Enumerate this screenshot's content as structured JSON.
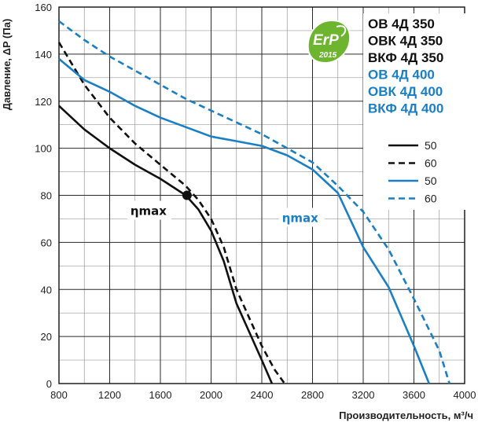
{
  "chart_data": {
    "type": "line",
    "xlabel": "Производительность, м³/ч",
    "ylabel": "Давление, ΔP (Па)",
    "xlim": [
      800,
      4000
    ],
    "ylim": [
      0,
      160
    ],
    "x_ticks": [
      "800",
      "1200",
      "1600",
      "2000",
      "2400",
      "2800",
      "3200",
      "3600",
      "4000"
    ],
    "y_ticks": [
      "0",
      "20",
      "40",
      "60",
      "80",
      "100",
      "120",
      "140",
      "160"
    ],
    "grid": true,
    "legend_position": "top-right",
    "legend_models": [
      {
        "label": "ОВ 4Д 350",
        "color": "#111111"
      },
      {
        "label": "ОВК 4Д 350",
        "color": "#111111"
      },
      {
        "label": "ВКФ 4Д 350",
        "color": "#111111"
      },
      {
        "label": "ОВ 4Д 400",
        "color": "#1a7fc4"
      },
      {
        "label": "ОВК 4Д 400",
        "color": "#1a7fc4"
      },
      {
        "label": "ВКФ 4Д 400",
        "color": "#1a7fc4"
      }
    ],
    "series": [
      {
        "name": "50",
        "color": "#111111",
        "dash": false,
        "points": [
          [
            800,
            118
          ],
          [
            1000,
            108
          ],
          [
            1200,
            100
          ],
          [
            1400,
            93
          ],
          [
            1600,
            87
          ],
          [
            1800,
            80
          ],
          [
            1900,
            74
          ],
          [
            2000,
            65
          ],
          [
            2100,
            52
          ],
          [
            2200,
            34
          ],
          [
            2300,
            22
          ],
          [
            2400,
            10
          ],
          [
            2480,
            0
          ]
        ]
      },
      {
        "name": "60",
        "color": "#111111",
        "dash": true,
        "points": [
          [
            800,
            145
          ],
          [
            1000,
            127
          ],
          [
            1200,
            113
          ],
          [
            1400,
            102
          ],
          [
            1600,
            93
          ],
          [
            1800,
            84
          ],
          [
            1900,
            78
          ],
          [
            2000,
            70
          ],
          [
            2100,
            58
          ],
          [
            2200,
            40
          ],
          [
            2300,
            28
          ],
          [
            2400,
            16
          ],
          [
            2500,
            6
          ],
          [
            2580,
            0
          ]
        ]
      },
      {
        "name": "50",
        "color": "#1a7fc4",
        "dash": false,
        "points": [
          [
            800,
            138
          ],
          [
            1000,
            129
          ],
          [
            1200,
            124
          ],
          [
            1400,
            118
          ],
          [
            1600,
            113
          ],
          [
            1800,
            109
          ],
          [
            2000,
            105
          ],
          [
            2200,
            103
          ],
          [
            2400,
            101
          ],
          [
            2600,
            97
          ],
          [
            2800,
            91
          ],
          [
            3000,
            81
          ],
          [
            3200,
            58
          ],
          [
            3400,
            41
          ],
          [
            3600,
            16
          ],
          [
            3720,
            0
          ]
        ]
      },
      {
        "name": "60",
        "color": "#1a7fc4",
        "dash": true,
        "points": [
          [
            800,
            154
          ],
          [
            1000,
            146
          ],
          [
            1200,
            139
          ],
          [
            1400,
            133
          ],
          [
            1600,
            127
          ],
          [
            1800,
            121
          ],
          [
            2000,
            116
          ],
          [
            2200,
            111
          ],
          [
            2400,
            106
          ],
          [
            2600,
            100
          ],
          [
            2800,
            94
          ],
          [
            3000,
            84
          ],
          [
            3200,
            73
          ],
          [
            3400,
            57
          ],
          [
            3600,
            36
          ],
          [
            3800,
            14
          ],
          [
            3880,
            0
          ]
        ]
      }
    ],
    "annotations": [
      {
        "text": "ηmax",
        "x": 1810,
        "y": 80,
        "color": "#111111",
        "marker": true
      },
      {
        "text": "ηmax",
        "x": 3000,
        "y": 81,
        "color": "#1a7fc4",
        "marker": false
      }
    ]
  },
  "badge": {
    "line1": "ErP",
    "line2": "2015"
  }
}
